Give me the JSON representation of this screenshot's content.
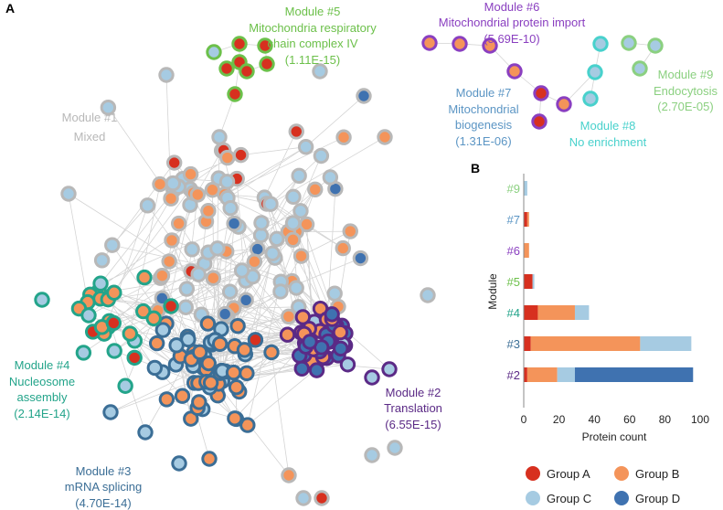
{
  "panels": {
    "a": "A",
    "b": "B"
  },
  "colors": {
    "group_a": "#d7301f",
    "group_b": "#f4945a",
    "group_c": "#a6cbe2",
    "group_d": "#3f72b0",
    "mod1": "#b8b8b8",
    "mod2": "#5b2a86",
    "mod3": "#3b6e96",
    "mod4": "#23a48a",
    "mod5": "#6cc04a",
    "mod6": "#8a3fc0",
    "mod7": "#5b95c4",
    "mod8": "#48d1cc",
    "mod9": "#8bd080",
    "edge": "#d4d4d4",
    "bar_grey": "#bdbdbd"
  },
  "modules": {
    "m1": {
      "name": "Module #1",
      "desc": "Mixed"
    },
    "m2": {
      "name": "Module #2",
      "desc": "Translation",
      "pval": "(6.55E-15)"
    },
    "m3": {
      "name": "Module #3",
      "desc": "mRNA splicing",
      "pval": "(4.70E-14)"
    },
    "m4": {
      "name": "Module #4",
      "desc1": "Nucleosome",
      "desc2": "assembly",
      "pval": "(2.14E-14)"
    },
    "m5": {
      "name": "Module #5",
      "desc1": "Mitochondria respiratory",
      "desc2": "chain complex IV",
      "pval": "(1.11E-15)"
    },
    "m6": {
      "name": "Module #6",
      "desc": "Mitochondrial protein import",
      "pval": "(5.69E-10)"
    },
    "m7": {
      "name": "Module #7",
      "desc1": "Mitochondrial",
      "desc2": "biogenesis",
      "pval": "(1.31E-06)"
    },
    "m8": {
      "name": "Module #8",
      "desc": "No enrichment"
    },
    "m9": {
      "name": "Module #9",
      "desc": "Endocytosis",
      "pval": "(2.70E-05)"
    }
  },
  "chart_data": {
    "type": "bar",
    "orientation": "horizontal",
    "stacked": true,
    "categories": [
      "#9",
      "#7",
      "#6",
      "#5",
      "#4",
      "#3",
      "#2"
    ],
    "category_colors": [
      "#8bd080",
      "#5b95c4",
      "#8a3fc0",
      "#6cc04a",
      "#23a48a",
      "#3b6e96",
      "#5b2a86"
    ],
    "series": [
      {
        "name": "Group A",
        "color": "#d7301f",
        "values": [
          0,
          2,
          0,
          5,
          8,
          4,
          2
        ]
      },
      {
        "name": "Group B",
        "color": "#f4945a",
        "values": [
          0,
          1,
          3,
          0,
          21,
          62,
          17
        ]
      },
      {
        "name": "Group C",
        "color": "#a6cbe2",
        "values": [
          2,
          0,
          0,
          1,
          8,
          29,
          10
        ]
      },
      {
        "name": "Group D",
        "color": "#3f72b0",
        "values": [
          0,
          0,
          0,
          0,
          0,
          0,
          67
        ]
      }
    ],
    "xlabel": "Protein count",
    "ylabel": "Module",
    "xlim": [
      0,
      100
    ],
    "xticks": [
      "0",
      "20",
      "40",
      "60",
      "80",
      "100"
    ],
    "legend_position": "bottom"
  }
}
